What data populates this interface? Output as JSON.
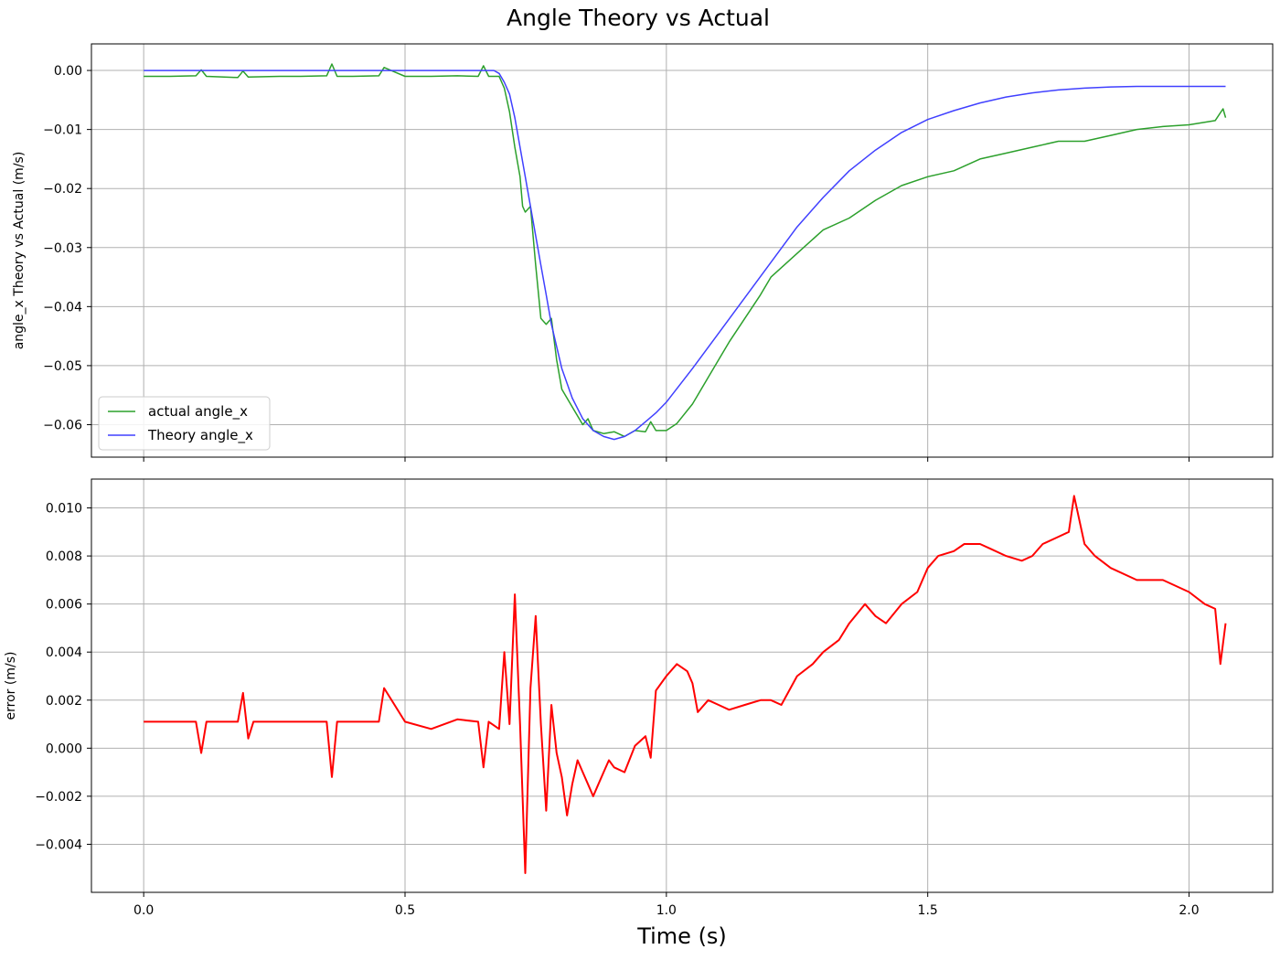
{
  "figure": {
    "title": "Angle Theory vs Actual",
    "xlabel": "Time (s)"
  },
  "chart_data": [
    {
      "type": "line",
      "title": "",
      "xlabel": "",
      "ylabel": "angle_x Theory vs Actual (m/s)",
      "xlim": [
        -0.1,
        2.16
      ],
      "ylim": [
        -0.0655,
        0.0045
      ],
      "x_ticks": [
        0.0,
        0.5,
        1.0,
        1.5,
        2.0
      ],
      "x_tick_labels": [
        "0.0",
        "0.5",
        "1.0",
        "1.5",
        "2.0"
      ],
      "y_ticks": [
        0.0,
        -0.01,
        -0.02,
        -0.03,
        -0.04,
        -0.05,
        -0.06
      ],
      "y_tick_labels": [
        "0.00",
        "−0.01",
        "−0.02",
        "−0.03",
        "−0.04",
        "−0.05",
        "−0.06"
      ],
      "grid": true,
      "legend_position": "lower-left",
      "series": [
        {
          "name": "actual angle_x",
          "color": "#2ca02c",
          "x": [
            0.0,
            0.05,
            0.1,
            0.11,
            0.12,
            0.18,
            0.19,
            0.2,
            0.26,
            0.3,
            0.35,
            0.36,
            0.37,
            0.4,
            0.45,
            0.46,
            0.5,
            0.55,
            0.6,
            0.64,
            0.65,
            0.66,
            0.68,
            0.69,
            0.7,
            0.71,
            0.72,
            0.725,
            0.73,
            0.74,
            0.75,
            0.76,
            0.77,
            0.78,
            0.79,
            0.8,
            0.82,
            0.84,
            0.85,
            0.86,
            0.88,
            0.9,
            0.92,
            0.94,
            0.96,
            0.97,
            0.98,
            1.0,
            1.02,
            1.05,
            1.08,
            1.1,
            1.12,
            1.15,
            1.18,
            1.2,
            1.25,
            1.3,
            1.35,
            1.4,
            1.45,
            1.5,
            1.55,
            1.6,
            1.65,
            1.7,
            1.75,
            1.8,
            1.85,
            1.9,
            1.95,
            2.0,
            2.05,
            2.065,
            2.07
          ],
          "y": [
            -0.001,
            -0.001,
            -0.0009,
            0.0001,
            -0.001,
            -0.0012,
            -0.0001,
            -0.0011,
            -0.001,
            -0.001,
            -0.0009,
            0.0011,
            -0.001,
            -0.001,
            -0.0009,
            0.0005,
            -0.001,
            -0.001,
            -0.0009,
            -0.001,
            0.0008,
            -0.001,
            -0.001,
            -0.003,
            -0.007,
            -0.013,
            -0.018,
            -0.023,
            -0.024,
            -0.023,
            -0.033,
            -0.042,
            -0.043,
            -0.042,
            -0.049,
            -0.054,
            -0.057,
            -0.06,
            -0.059,
            -0.061,
            -0.0615,
            -0.0612,
            -0.062,
            -0.061,
            -0.0612,
            -0.0595,
            -0.061,
            -0.061,
            -0.0598,
            -0.0565,
            -0.052,
            -0.049,
            -0.046,
            -0.042,
            -0.038,
            -0.035,
            -0.031,
            -0.027,
            -0.025,
            -0.022,
            -0.0195,
            -0.018,
            -0.017,
            -0.015,
            -0.014,
            -0.013,
            -0.012,
            -0.012,
            -0.011,
            -0.01,
            -0.0095,
            -0.0092,
            -0.0085,
            -0.0065,
            -0.008
          ]
        },
        {
          "name": "Theory angle_x",
          "color": "#4040ff",
          "x": [
            0.0,
            0.1,
            0.2,
            0.3,
            0.4,
            0.5,
            0.6,
            0.67,
            0.68,
            0.69,
            0.7,
            0.71,
            0.72,
            0.73,
            0.74,
            0.75,
            0.76,
            0.77,
            0.78,
            0.8,
            0.82,
            0.84,
            0.86,
            0.88,
            0.9,
            0.92,
            0.94,
            0.96,
            0.98,
            1.0,
            1.05,
            1.1,
            1.15,
            1.2,
            1.25,
            1.3,
            1.35,
            1.4,
            1.45,
            1.5,
            1.55,
            1.6,
            1.65,
            1.7,
            1.75,
            1.8,
            1.85,
            1.9,
            1.95,
            2.0,
            2.07
          ],
          "y": [
            0.0,
            0.0,
            0.0,
            0.0,
            0.0,
            0.0,
            0.0,
            0.0,
            -0.0005,
            -0.002,
            -0.004,
            -0.008,
            -0.013,
            -0.018,
            -0.023,
            -0.028,
            -0.033,
            -0.038,
            -0.043,
            -0.0505,
            -0.0555,
            -0.059,
            -0.061,
            -0.062,
            -0.0625,
            -0.062,
            -0.061,
            -0.0595,
            -0.058,
            -0.0562,
            -0.0505,
            -0.0445,
            -0.0385,
            -0.0325,
            -0.0265,
            -0.0215,
            -0.017,
            -0.0135,
            -0.0105,
            -0.0083,
            -0.0068,
            -0.0055,
            -0.0045,
            -0.0038,
            -0.0033,
            -0.003,
            -0.0028,
            -0.0027,
            -0.0027,
            -0.0027,
            -0.0027
          ]
        }
      ]
    },
    {
      "type": "line",
      "title": "",
      "xlabel": "",
      "ylabel": "error (m/s)",
      "xlim": [
        -0.1,
        2.16
      ],
      "ylim": [
        -0.006,
        0.0112
      ],
      "x_ticks": [
        0.0,
        0.5,
        1.0,
        1.5,
        2.0
      ],
      "x_tick_labels": [
        "0.0",
        "0.5",
        "1.0",
        "1.5",
        "2.0"
      ],
      "y_ticks": [
        0.01,
        0.008,
        0.006,
        0.004,
        0.002,
        0.0,
        -0.002,
        -0.004
      ],
      "y_tick_labels": [
        "0.010",
        "0.008",
        "0.006",
        "0.004",
        "0.002",
        "0.000",
        "−0.002",
        "−0.004"
      ],
      "grid": true,
      "series": [
        {
          "color": "#ff0000",
          "x": [
            0.0,
            0.05,
            0.1,
            0.11,
            0.12,
            0.18,
            0.19,
            0.2,
            0.21,
            0.26,
            0.3,
            0.35,
            0.36,
            0.37,
            0.4,
            0.45,
            0.46,
            0.5,
            0.55,
            0.6,
            0.64,
            0.65,
            0.66,
            0.68,
            0.69,
            0.7,
            0.71,
            0.72,
            0.73,
            0.74,
            0.75,
            0.76,
            0.77,
            0.78,
            0.79,
            0.8,
            0.81,
            0.82,
            0.83,
            0.84,
            0.85,
            0.86,
            0.87,
            0.88,
            0.89,
            0.9,
            0.92,
            0.94,
            0.96,
            0.97,
            0.98,
            1.0,
            1.02,
            1.04,
            1.05,
            1.06,
            1.08,
            1.1,
            1.12,
            1.15,
            1.18,
            1.2,
            1.22,
            1.25,
            1.28,
            1.3,
            1.33,
            1.35,
            1.38,
            1.4,
            1.42,
            1.45,
            1.48,
            1.5,
            1.52,
            1.55,
            1.57,
            1.6,
            1.62,
            1.65,
            1.68,
            1.7,
            1.72,
            1.75,
            1.77,
            1.78,
            1.8,
            1.82,
            1.85,
            1.9,
            1.95,
            2.0,
            2.03,
            2.05,
            2.06,
            2.07
          ],
          "y": [
            0.0011,
            0.0011,
            0.0011,
            -0.0002,
            0.0011,
            0.0011,
            0.0023,
            0.0004,
            0.0011,
            0.0011,
            0.0011,
            0.0011,
            -0.0012,
            0.0011,
            0.0011,
            0.0011,
            0.0025,
            0.0011,
            0.0008,
            0.0012,
            0.0011,
            -0.0008,
            0.0011,
            0.0008,
            0.004,
            0.001,
            0.0064,
            0.001,
            -0.0052,
            0.0025,
            0.0055,
            0.001,
            -0.0026,
            0.0018,
            -0.0002,
            -0.0012,
            -0.0028,
            -0.0015,
            -0.0005,
            -0.001,
            -0.0015,
            -0.002,
            -0.0015,
            -0.001,
            -0.0005,
            -0.0008,
            -0.001,
            0.0001,
            0.0005,
            -0.0004,
            0.0024,
            0.003,
            0.0035,
            0.0032,
            0.0027,
            0.0015,
            0.002,
            0.0018,
            0.0016,
            0.0018,
            0.002,
            0.002,
            0.0018,
            0.003,
            0.0035,
            0.004,
            0.0045,
            0.0052,
            0.006,
            0.0055,
            0.0052,
            0.006,
            0.0065,
            0.0075,
            0.008,
            0.0082,
            0.0085,
            0.0085,
            0.0083,
            0.008,
            0.0078,
            0.008,
            0.0085,
            0.0088,
            0.009,
            0.0105,
            0.0085,
            0.008,
            0.0075,
            0.007,
            0.007,
            0.0065,
            0.006,
            0.0058,
            0.0035,
            0.0052
          ]
        }
      ]
    }
  ]
}
